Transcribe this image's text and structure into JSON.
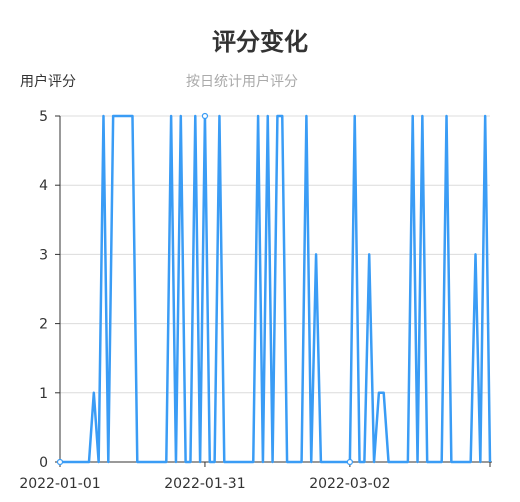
{
  "chart_data": {
    "type": "line",
    "title": "评分变化",
    "ylabel": "用户评分",
    "subtitle": "按日统计用户评分",
    "xlabel": "",
    "ylim": [
      0,
      5
    ],
    "yticks": [
      0,
      1,
      2,
      3,
      4,
      5
    ],
    "x_start": "2022-01-01",
    "xticks": [
      "2022-01-01",
      "2022-01-31",
      "2022-03-02"
    ],
    "grid": true,
    "legend": "none",
    "line_color": "#3a9cf5",
    "values": [
      0,
      0,
      0,
      0,
      0,
      0,
      0,
      1,
      0,
      5,
      0,
      5,
      5,
      5,
      5,
      5,
      0,
      0,
      0,
      0,
      0,
      0,
      0,
      5,
      0,
      5,
      0,
      0,
      5,
      0,
      5,
      0,
      0,
      5,
      0,
      0,
      0,
      0,
      0,
      0,
      0,
      5,
      0,
      5,
      0,
      5,
      5,
      0,
      0,
      0,
      0,
      5,
      0,
      3,
      0,
      0,
      0,
      0,
      0,
      0,
      0,
      5,
      0,
      0,
      3,
      0,
      1,
      1,
      0,
      0,
      0,
      0,
      0,
      5,
      0,
      5,
      0,
      0,
      0,
      0,
      5,
      0,
      0,
      0,
      0,
      0,
      3,
      0,
      5,
      0
    ]
  }
}
